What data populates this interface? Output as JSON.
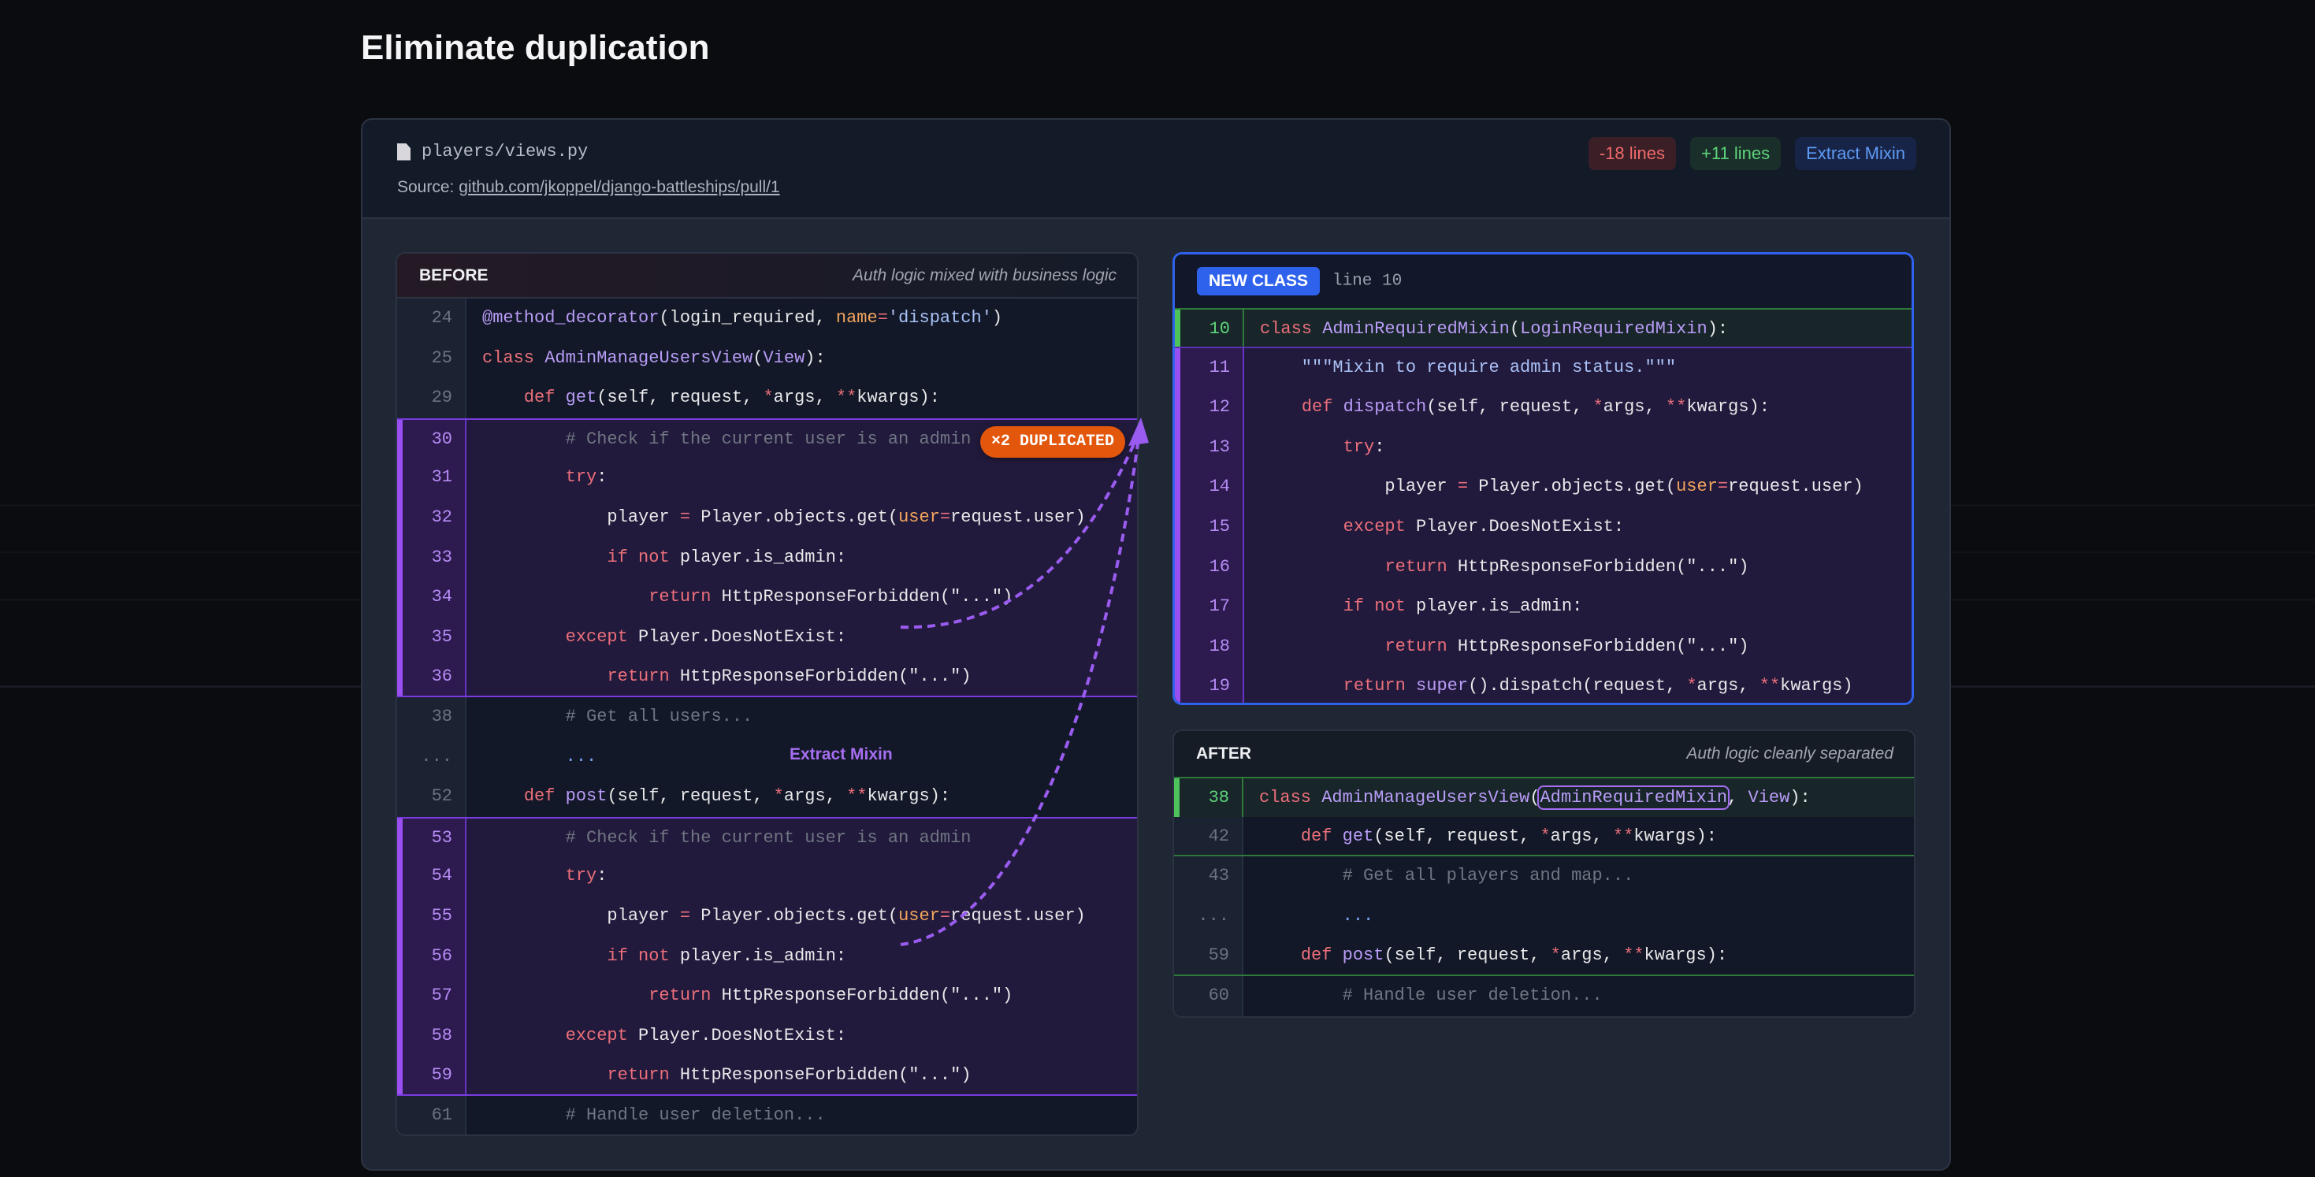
{
  "page_title": "Eliminate duplication",
  "file": {
    "name": "players/views.py",
    "icon": "file-icon",
    "source_label": "Source:",
    "source_link": "github.com/jkoppel/django-battleships/pull/1"
  },
  "badges": {
    "removed": "-18 lines",
    "added": "+11 lines",
    "refactor": "Extract Mixin"
  },
  "colors": {
    "accent_blue": "#2f62ec",
    "duplicate_purple": "#9a4ff0",
    "added_green": "#4ec35c",
    "duplicate_badge": "#e2570c"
  },
  "annotations": {
    "duplicated": "×2 DUPLICATED",
    "arrow_label": "Extract Mixin"
  },
  "before": {
    "label": "BEFORE",
    "subtitle": "Auth logic mixed with business logic",
    "rows": [
      {
        "num": "24",
        "hl": "",
        "tokens": [
          [
            "fn",
            "@method_decorator"
          ],
          [
            "pl",
            "(login_required, "
          ],
          [
            "param",
            "name"
          ],
          [
            "op",
            "="
          ],
          [
            "str",
            "'dispatch'"
          ],
          [
            "pl",
            ")"
          ]
        ]
      },
      {
        "num": "25",
        "hl": "",
        "tokens": [
          [
            "kw",
            "class"
          ],
          [
            "pl",
            " "
          ],
          [
            "fn",
            "AdminManageUsersView"
          ],
          [
            "pl",
            "("
          ],
          [
            "fn",
            "View"
          ],
          [
            "pl",
            "):"
          ]
        ]
      },
      {
        "num": "29",
        "hl": "",
        "tokens": [
          [
            "pl",
            "    "
          ],
          [
            "kw",
            "def"
          ],
          [
            "pl",
            " "
          ],
          [
            "fn",
            "get"
          ],
          [
            "pl",
            "(self, request, "
          ],
          [
            "op",
            "*"
          ],
          [
            "pl",
            "args, "
          ],
          [
            "op",
            "**"
          ],
          [
            "pl",
            "kwargs):"
          ]
        ]
      },
      {
        "num": "30",
        "hl": "dup dup-first",
        "tokens": [
          [
            "cm",
            "        # Check if the current user is an admin"
          ]
        ]
      },
      {
        "num": "31",
        "hl": "dup",
        "tokens": [
          [
            "pl",
            "        "
          ],
          [
            "kw",
            "try"
          ],
          [
            "pl",
            ":"
          ]
        ]
      },
      {
        "num": "32",
        "hl": "dup",
        "tokens": [
          [
            "pl",
            "            player "
          ],
          [
            "op",
            "="
          ],
          [
            "pl",
            " Player.objects.get("
          ],
          [
            "param",
            "user"
          ],
          [
            "op",
            "="
          ],
          [
            "pl",
            "request.user)"
          ]
        ]
      },
      {
        "num": "33",
        "hl": "dup",
        "tokens": [
          [
            "pl",
            "            "
          ],
          [
            "kw",
            "if not"
          ],
          [
            "pl",
            " player.is_admin:"
          ]
        ]
      },
      {
        "num": "34",
        "hl": "dup",
        "tokens": [
          [
            "pl",
            "                "
          ],
          [
            "kw",
            "return"
          ],
          [
            "pl",
            " HttpResponseForbidden(\"...\")"
          ]
        ]
      },
      {
        "num": "35",
        "hl": "dup",
        "tokens": [
          [
            "pl",
            "        "
          ],
          [
            "kw",
            "except"
          ],
          [
            "pl",
            " Player.DoesNotExist:"
          ]
        ]
      },
      {
        "num": "36",
        "hl": "dup dup-last",
        "tokens": [
          [
            "pl",
            "            "
          ],
          [
            "kw",
            "return"
          ],
          [
            "pl",
            " HttpResponseForbidden(\"...\")"
          ]
        ]
      },
      {
        "num": "38",
        "hl": "",
        "tokens": [
          [
            "cm",
            "        # Get all users..."
          ]
        ]
      },
      {
        "num": "...",
        "hl": "",
        "tokens": [
          [
            "dots",
            "        ..."
          ]
        ]
      },
      {
        "num": "52",
        "hl": "",
        "tokens": [
          [
            "pl",
            "    "
          ],
          [
            "kw",
            "def"
          ],
          [
            "pl",
            " "
          ],
          [
            "fn",
            "post"
          ],
          [
            "pl",
            "(self, request, "
          ],
          [
            "op",
            "*"
          ],
          [
            "pl",
            "args, "
          ],
          [
            "op",
            "**"
          ],
          [
            "pl",
            "kwargs):"
          ]
        ]
      },
      {
        "num": "53",
        "hl": "dup dup-first",
        "tokens": [
          [
            "cm",
            "        # Check if the current user is an admin"
          ]
        ]
      },
      {
        "num": "54",
        "hl": "dup",
        "tokens": [
          [
            "pl",
            "        "
          ],
          [
            "kw",
            "try"
          ],
          [
            "pl",
            ":"
          ]
        ]
      },
      {
        "num": "55",
        "hl": "dup",
        "tokens": [
          [
            "pl",
            "            player "
          ],
          [
            "op",
            "="
          ],
          [
            "pl",
            " Player.objects.get("
          ],
          [
            "param",
            "user"
          ],
          [
            "op",
            "="
          ],
          [
            "pl",
            "request.user)"
          ]
        ]
      },
      {
        "num": "56",
        "hl": "dup",
        "tokens": [
          [
            "pl",
            "            "
          ],
          [
            "kw",
            "if not"
          ],
          [
            "pl",
            " player.is_admin:"
          ]
        ]
      },
      {
        "num": "57",
        "hl": "dup",
        "tokens": [
          [
            "pl",
            "                "
          ],
          [
            "kw",
            "return"
          ],
          [
            "pl",
            " HttpResponseForbidden(\"...\")"
          ]
        ]
      },
      {
        "num": "58",
        "hl": "dup",
        "tokens": [
          [
            "pl",
            "        "
          ],
          [
            "kw",
            "except"
          ],
          [
            "pl",
            " Player.DoesNotExist:"
          ]
        ]
      },
      {
        "num": "59",
        "hl": "dup dup-last",
        "tokens": [
          [
            "pl",
            "            "
          ],
          [
            "kw",
            "return"
          ],
          [
            "pl",
            " HttpResponseForbidden(\"...\")"
          ]
        ]
      },
      {
        "num": "61",
        "hl": "",
        "tokens": [
          [
            "cm",
            "        # Handle user deletion..."
          ]
        ]
      }
    ]
  },
  "new_class": {
    "badge": "NEW CLASS",
    "line_ref": "line 10",
    "rows": [
      {
        "num": "10",
        "hl": "add",
        "tokens": [
          [
            "kw",
            "class"
          ],
          [
            "pl",
            " "
          ],
          [
            "fn",
            "AdminRequiredMixin"
          ],
          [
            "pl",
            "("
          ],
          [
            "fn",
            "LoginRequiredMixin"
          ],
          [
            "pl",
            "):"
          ]
        ]
      },
      {
        "num": "11",
        "hl": "dup",
        "tokens": [
          [
            "str",
            "    \"\"\"Mixin to require admin status.\"\"\""
          ]
        ]
      },
      {
        "num": "12",
        "hl": "dup",
        "tokens": [
          [
            "pl",
            "    "
          ],
          [
            "kw",
            "def"
          ],
          [
            "pl",
            " "
          ],
          [
            "fn",
            "dispatch"
          ],
          [
            "pl",
            "(self, request, "
          ],
          [
            "op",
            "*"
          ],
          [
            "pl",
            "args, "
          ],
          [
            "op",
            "**"
          ],
          [
            "pl",
            "kwargs):"
          ]
        ]
      },
      {
        "num": "13",
        "hl": "dup",
        "tokens": [
          [
            "pl",
            "        "
          ],
          [
            "kw",
            "try"
          ],
          [
            "pl",
            ":"
          ]
        ]
      },
      {
        "num": "14",
        "hl": "dup",
        "tokens": [
          [
            "pl",
            "            player "
          ],
          [
            "op",
            "="
          ],
          [
            "pl",
            " Player.objects.get("
          ],
          [
            "param",
            "user"
          ],
          [
            "op",
            "="
          ],
          [
            "pl",
            "request.user)"
          ]
        ]
      },
      {
        "num": "15",
        "hl": "dup",
        "tokens": [
          [
            "pl",
            "        "
          ],
          [
            "kw",
            "except"
          ],
          [
            "pl",
            " Player.DoesNotExist:"
          ]
        ]
      },
      {
        "num": "16",
        "hl": "dup",
        "tokens": [
          [
            "pl",
            "            "
          ],
          [
            "kw",
            "return"
          ],
          [
            "pl",
            " HttpResponseForbidden(\"...\")"
          ]
        ]
      },
      {
        "num": "17",
        "hl": "dup",
        "tokens": [
          [
            "pl",
            "        "
          ],
          [
            "kw",
            "if not"
          ],
          [
            "pl",
            " player.is_admin:"
          ]
        ]
      },
      {
        "num": "18",
        "hl": "dup",
        "tokens": [
          [
            "pl",
            "            "
          ],
          [
            "kw",
            "return"
          ],
          [
            "pl",
            " HttpResponseForbidden(\"...\")"
          ]
        ]
      },
      {
        "num": "19",
        "hl": "dup",
        "tokens": [
          [
            "pl",
            "        "
          ],
          [
            "kw",
            "return"
          ],
          [
            "pl",
            " "
          ],
          [
            "fn",
            "super"
          ],
          [
            "pl",
            "().dispatch(request, "
          ],
          [
            "op",
            "*"
          ],
          [
            "pl",
            "args, "
          ],
          [
            "op",
            "**"
          ],
          [
            "pl",
            "kwargs)"
          ]
        ]
      }
    ]
  },
  "after": {
    "label": "AFTER",
    "subtitle": "Auth logic cleanly separated",
    "rows": [
      {
        "num": "38",
        "hl": "add add-after",
        "tokens": [
          [
            "kw",
            "class"
          ],
          [
            "pl",
            " "
          ],
          [
            "fn",
            "AdminManageUsersView"
          ],
          [
            "pl",
            "("
          ],
          [
            "box",
            "AdminRequiredMixin"
          ],
          [
            "pl",
            ", "
          ],
          [
            "fn",
            "View"
          ],
          [
            "pl",
            "):"
          ]
        ]
      },
      {
        "num": "42",
        "hl": "gline",
        "tokens": [
          [
            "pl",
            "    "
          ],
          [
            "kw",
            "def"
          ],
          [
            "pl",
            " "
          ],
          [
            "fn",
            "get"
          ],
          [
            "pl",
            "(self, request, "
          ],
          [
            "op",
            "*"
          ],
          [
            "pl",
            "args, "
          ],
          [
            "op",
            "**"
          ],
          [
            "pl",
            "kwargs):"
          ]
        ]
      },
      {
        "num": "43",
        "hl": "",
        "tokens": [
          [
            "cm",
            "        # Get all players and map..."
          ]
        ]
      },
      {
        "num": "...",
        "hl": "",
        "tokens": [
          [
            "dots",
            "        ..."
          ]
        ]
      },
      {
        "num": "59",
        "hl": "gline",
        "tokens": [
          [
            "pl",
            "    "
          ],
          [
            "kw",
            "def"
          ],
          [
            "pl",
            " "
          ],
          [
            "fn",
            "post"
          ],
          [
            "pl",
            "(self, request, "
          ],
          [
            "op",
            "*"
          ],
          [
            "pl",
            "args, "
          ],
          [
            "op",
            "**"
          ],
          [
            "pl",
            "kwargs):"
          ]
        ]
      },
      {
        "num": "60",
        "hl": "",
        "tokens": [
          [
            "cm",
            "        # Handle user deletion..."
          ]
        ]
      }
    ]
  }
}
